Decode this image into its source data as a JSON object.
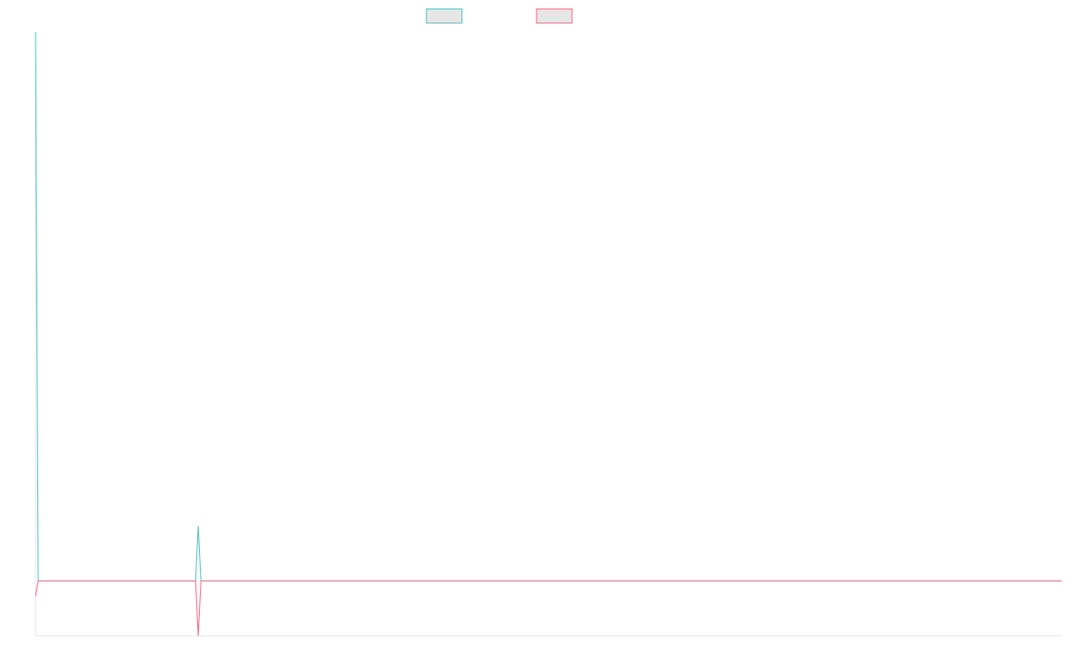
{
  "chart_data": {
    "type": "line",
    "title": "",
    "xlabel": "",
    "ylabel": "",
    "x": [
      0,
      1,
      2,
      3,
      4,
      5,
      6,
      7,
      8,
      9,
      10,
      11,
      12,
      13,
      14,
      15,
      16,
      17,
      18,
      19,
      20,
      21,
      22,
      23,
      24,
      25,
      26,
      27,
      28,
      29,
      30,
      31,
      32,
      33,
      34,
      35,
      36,
      37,
      38,
      39,
      40,
      41,
      42,
      43,
      44,
      45,
      46,
      47,
      48,
      49,
      50,
      51,
      52,
      53,
      54,
      55,
      56,
      57,
      58,
      59,
      60,
      61,
      62,
      63,
      64,
      65,
      66,
      67,
      68,
      69,
      70,
      71,
      72,
      73,
      74,
      75,
      76,
      77,
      78,
      79,
      80,
      81,
      82,
      83,
      84,
      85,
      86,
      87,
      88,
      89,
      90,
      91,
      92,
      93,
      94,
      95,
      96,
      97,
      98,
      99,
      100,
      101,
      102,
      103,
      104,
      105,
      106,
      107,
      108,
      109,
      110,
      111,
      112,
      113,
      114,
      115,
      116,
      117,
      118,
      119,
      120,
      121,
      122,
      123,
      124,
      125,
      126,
      127,
      128,
      129,
      130,
      131,
      132,
      133,
      134,
      135,
      136,
      137,
      138,
      139,
      140,
      141,
      142,
      143,
      144,
      145,
      146,
      147,
      148,
      149,
      150,
      151,
      152,
      153,
      154,
      155,
      156,
      157,
      158,
      159,
      160,
      161,
      162,
      163,
      164,
      165,
      166,
      167,
      168,
      169,
      170,
      171,
      172,
      173,
      174,
      175,
      176,
      177,
      178,
      179,
      180,
      181,
      182,
      183,
      184,
      185,
      186,
      187,
      188,
      189,
      190,
      191,
      192,
      193,
      194,
      195,
      196,
      197,
      198,
      199,
      200,
      201,
      202,
      203,
      204,
      205,
      206,
      207,
      208,
      209,
      210,
      211,
      212,
      213,
      214,
      215,
      216,
      217,
      218,
      219,
      220,
      221,
      222,
      223,
      224,
      225,
      226,
      227,
      228,
      229,
      230,
      231,
      232,
      233,
      234,
      235,
      236,
      237,
      238,
      239,
      240,
      241,
      242,
      243,
      244,
      245,
      246,
      247,
      248,
      249,
      250,
      251,
      252,
      253,
      254,
      255,
      256,
      257,
      258,
      259,
      260,
      261,
      262,
      263,
      264,
      265,
      266,
      267,
      268,
      269,
      270,
      271,
      272,
      273,
      274,
      275,
      276,
      277,
      278,
      279,
      280,
      281,
      282,
      283,
      284,
      285,
      286,
      287,
      288,
      289,
      290,
      291,
      292,
      293,
      294,
      295,
      296,
      297,
      298,
      299,
      300,
      301,
      302,
      303,
      304,
      305,
      306,
      307,
      308,
      309,
      310,
      311,
      312,
      313,
      314,
      315,
      316,
      317,
      318,
      319,
      320,
      321,
      322,
      323,
      324,
      325,
      326,
      327,
      328,
      329,
      330,
      331,
      332,
      333,
      334,
      335,
      336,
      337,
      338,
      339,
      340,
      341,
      342,
      343,
      344,
      345,
      346,
      347,
      348,
      349,
      350,
      351,
      352,
      353,
      354,
      355,
      356,
      357,
      358,
      359,
      360,
      361,
      362,
      363,
      364,
      365,
      366,
      367,
      368,
      369,
      370,
      371,
      372,
      373,
      374,
      375,
      376,
      377,
      378,
      379,
      380,
      381,
      382,
      383,
      384,
      385,
      386,
      387,
      388,
      389,
      390,
      391,
      392,
      393,
      394,
      395,
      396,
      397,
      398,
      399,
      400,
      401,
      402,
      403,
      404,
      405,
      406,
      407,
      408,
      409,
      410,
      411,
      412,
      413,
      414,
      415,
      416,
      417,
      418,
      419,
      420,
      421,
      422,
      423,
      424,
      425,
      426,
      427,
      428,
      429,
      430,
      431,
      432,
      433,
      434,
      435,
      436,
      437,
      438,
      439,
      440,
      441,
      442,
      443,
      444,
      445,
      446,
      447,
      448,
      449,
      450,
      451,
      452,
      453,
      454,
      455,
      456,
      457,
      458,
      459,
      460,
      461,
      462,
      463,
      464,
      465,
      466,
      467,
      468,
      469,
      470,
      471,
      472,
      473,
      474,
      475,
      476,
      477,
      478,
      479,
      480,
      481,
      482,
      483,
      484,
      485,
      486,
      487,
      488,
      489,
      490,
      491,
      492,
      493,
      494,
      495,
      496,
      497,
      498,
      499,
      500,
      501,
      502,
      503,
      504,
      505,
      506,
      507,
      508,
      509,
      510,
      511,
      512,
      513,
      514,
      515,
      516,
      517,
      518,
      519,
      520,
      521,
      522,
      523,
      524,
      525,
      526,
      527,
      528,
      529,
      530,
      531,
      532,
      533,
      534,
      535,
      536,
      537,
      538,
      539,
      540,
      541,
      542,
      543,
      544,
      545,
      546,
      547,
      548,
      549,
      550,
      551,
      552,
      553,
      554,
      555,
      556,
      557,
      558,
      559,
      560,
      561,
      562,
      563,
      564,
      565,
      566,
      567,
      568,
      569,
      570,
      571,
      572,
      573,
      574,
      575,
      576,
      577,
      578,
      579,
      580,
      581,
      582,
      583,
      584,
      585,
      586,
      587,
      588,
      589,
      590,
      591,
      592,
      593,
      594,
      595,
      596,
      597,
      598,
      599,
      600,
      601,
      602,
      603,
      604,
      605,
      606,
      607,
      608,
      609,
      610,
      611,
      612,
      613,
      614,
      615,
      616,
      617,
      618,
      619,
      620,
      621,
      622,
      623,
      624,
      625,
      626,
      627,
      628,
      629,
      630,
      631,
      632,
      633,
      634,
      635,
      636,
      637,
      638,
      639,
      640,
      641,
      642,
      643,
      644,
      645,
      646,
      647,
      648,
      649,
      650,
      651,
      652,
      653,
      654,
      655,
      656,
      657,
      658,
      659,
      660,
      661,
      662,
      663,
      664,
      665,
      666,
      667,
      668,
      669,
      670,
      671,
      672,
      673,
      674,
      675,
      676,
      677,
      678,
      679,
      680,
      681,
      682,
      683,
      684,
      685,
      686,
      687,
      688,
      689,
      690,
      691,
      692,
      693,
      694,
      695,
      696,
      697,
      698,
      699,
      700,
      701,
      702,
      703,
      704,
      705,
      706,
      707,
      708,
      709,
      710,
      711,
      712,
      713,
      714,
      715,
      716,
      717,
      718,
      719,
      720,
      721,
      722,
      723,
      724,
      725,
      726,
      727,
      728,
      729,
      730,
      731,
      732,
      733,
      734,
      735,
      736,
      737,
      738,
      739,
      740,
      741,
      742,
      743,
      744,
      745,
      746,
      747,
      748,
      749,
      750,
      751,
      752,
      753,
      754,
      755,
      756,
      757,
      758,
      759,
      760,
      761,
      762,
      763,
      764,
      765,
      766,
      767,
      768,
      769,
      770,
      771,
      772,
      773,
      774,
      775,
      776,
      777,
      778,
      779,
      780,
      781,
      782,
      783,
      784,
      785,
      786,
      787,
      788,
      789,
      790,
      791,
      792,
      793,
      794,
      795,
      796,
      797,
      798,
      799,
      800,
      801,
      802,
      803,
      804,
      805,
      806,
      807,
      808,
      809,
      810,
      811,
      812,
      813,
      814,
      815,
      816,
      817,
      818,
      819,
      820,
      821,
      822,
      823,
      824,
      825,
      826,
      827,
      828,
      829,
      830,
      831,
      832,
      833,
      834,
      835,
      836,
      837,
      838,
      839,
      840,
      841,
      842,
      843,
      844,
      845,
      846,
      847,
      848,
      849,
      850,
      851,
      852,
      853,
      854,
      855,
      856,
      857,
      858,
      859,
      860,
      861,
      862,
      863,
      864,
      865,
      866,
      867,
      868,
      869,
      870,
      871,
      872,
      873,
      874,
      875,
      876,
      877,
      878,
      879,
      880,
      881,
      882,
      883,
      884,
      885,
      886,
      887,
      888,
      889,
      890,
      891,
      892,
      893,
      894,
      895,
      896,
      897,
      898,
      899,
      900,
      901,
      902,
      903,
      904,
      905,
      906,
      907,
      908,
      909,
      910,
      911,
      912,
      913,
      914,
      915,
      916,
      917,
      918,
      919,
      920,
      921,
      922,
      923,
      924,
      925,
      926,
      927,
      928,
      929,
      930,
      931,
      932,
      933,
      934,
      935,
      936,
      937,
      938,
      939,
      940,
      941,
      942,
      943,
      944,
      945,
      946,
      947,
      948,
      949,
      950,
      951,
      952,
      953,
      954,
      955,
      956,
      957,
      958,
      959,
      960,
      961,
      962,
      963,
      964,
      965,
      966,
      967,
      968,
      969,
      970,
      971,
      972,
      973,
      974,
      975,
      976,
      977,
      978,
      979,
      980,
      981,
      982,
      983,
      984,
      985,
      986,
      987,
      988,
      989,
      990,
      991,
      992,
      993,
      994,
      995,
      996,
      997,
      998,
      999,
      1000,
      1001,
      1002,
      1003,
      1004,
      1005,
      1006,
      1007,
      1008,
      1009,
      1010,
      1011,
      1012,
      1013,
      1014,
      1015,
      1016,
      1017,
      1018,
      1019,
      1020,
      1021,
      1022,
      1023,
      1024,
      1025,
      1026,
      1027,
      1028,
      1029,
      1030,
      1031,
      1032,
      1033,
      1034,
      1035,
      1036,
      1037,
      1038,
      1039,
      1040,
      1041,
      1042,
      1043,
      1044,
      1045,
      1046,
      1047,
      1048,
      1049,
      1050,
      1051,
      1052,
      1053,
      1054,
      1055,
      1056,
      1057,
      1058,
      1059,
      1060,
      1061,
      1062,
      1063,
      1064,
      1065,
      1066,
      1067,
      1068,
      1069,
      1070,
      1071,
      1072,
      1073,
      1074,
      1075,
      1076,
      1077,
      1078,
      1079,
      1080,
      1081,
      1082,
      1083,
      1084,
      1085,
      1086,
      1087,
      1088,
      1089,
      1090,
      1091,
      1092,
      1093,
      1094,
      1095,
      1096,
      1097,
      1098,
      1099,
      1100,
      1101,
      1102,
      1103,
      1104,
      1105,
      1106,
      1107,
      1108,
      1109,
      1110,
      1111,
      1112,
      1113,
      1114,
      1115,
      1116,
      1117,
      1118,
      1119,
      1120,
      1121,
      1122,
      1123,
      1124,
      1125,
      1126,
      1127,
      1128,
      1129,
      1130,
      1131,
      1132,
      1133,
      1134,
      1135,
      1136,
      1137,
      1138,
      1139,
      1140,
      1141,
      1142,
      1143,
      1144,
      1145,
      1146,
      1147,
      1148,
      1149,
      1150,
      1151,
      1152,
      1153,
      1154
    ],
    "ylim": [
      -1,
      10
    ],
    "series": [
      {
        "name": "",
        "color": "#4bc0c0",
        "fill": "#e6e6e6",
        "values_sparse": [
          [
            0,
            10
          ],
          [
            3,
            0
          ],
          [
            180,
            0
          ],
          [
            183,
            1
          ],
          [
            186,
            0
          ],
          [
            1154,
            0
          ]
        ]
      },
      {
        "name": "",
        "color": "#ff6384",
        "fill": "#e6e6e6",
        "values_sparse": [
          [
            0,
            -0.28
          ],
          [
            3,
            0
          ],
          [
            180,
            0
          ],
          [
            183,
            -1
          ],
          [
            186,
            0
          ],
          [
            1154,
            0
          ]
        ]
      }
    ],
    "legend": "top-center",
    "grid": false
  }
}
